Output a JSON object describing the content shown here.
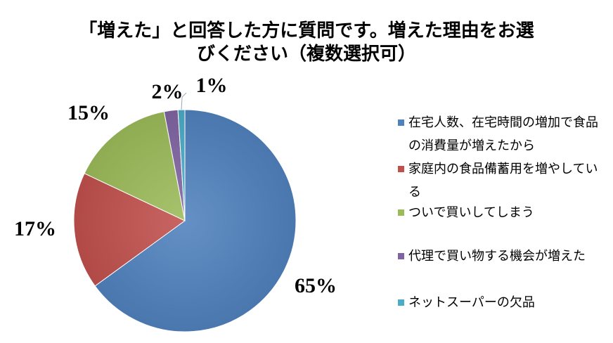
{
  "chart_data": {
    "type": "pie",
    "title_lines": [
      "「増えた」と回答した方に質問です。増えた理由をお選",
      "びください（複数選択可）"
    ],
    "slices": [
      {
        "label": "在宅人数、在宅時間の増加で食品の消費量が増えたから",
        "value": 65,
        "value_label": "65%",
        "color": "#4F81BD"
      },
      {
        "label": "家庭内の食品備蓄用を増やしている",
        "value": 17,
        "value_label": "17%",
        "color": "#C0504D"
      },
      {
        "label": "ついで買いしてしまう",
        "value": 15,
        "value_label": "15%",
        "color": "#9BBB59"
      },
      {
        "label": "代理で買い物する機会が増えた",
        "value": 2,
        "value_label": "2%",
        "color": "#8064A2"
      },
      {
        "label": "ネットスーパーの欠品",
        "value": 1,
        "value_label": "1%",
        "color": "#4BACC6"
      }
    ],
    "legend_position": "right"
  }
}
